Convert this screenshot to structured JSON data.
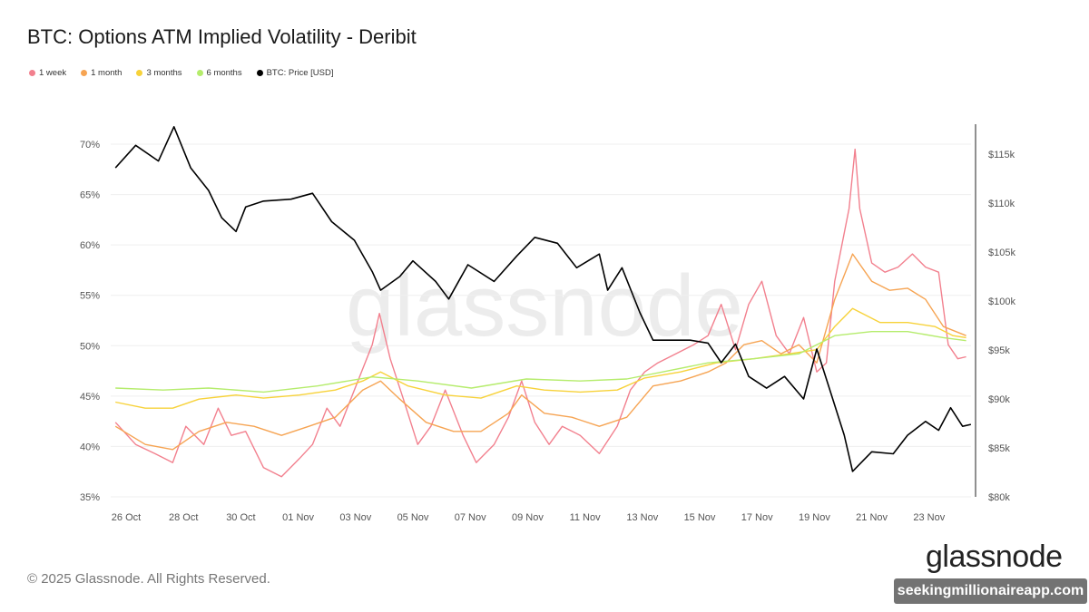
{
  "title": "BTC: Options ATM Implied Volatility - Deribit",
  "footer": "© 2025 Glassnode. All Rights Reserved.",
  "watermark": "glassnode",
  "logo": "glassnode",
  "overlay_watermark": "seekingmillionaireapp.com",
  "legend": [
    {
      "label": "1 week",
      "color": "#f2808e"
    },
    {
      "label": "1 month",
      "color": "#f6a453"
    },
    {
      "label": "3 months",
      "color": "#f7d23a"
    },
    {
      "label": "6 months",
      "color": "#b5ec6c"
    },
    {
      "label": "BTC: Price [USD]",
      "color": "#000000"
    }
  ],
  "chart_data": {
    "type": "line",
    "title": "BTC: Options ATM Implied Volatility - Deribit",
    "x_ticks": [
      "26 Oct",
      "28 Oct",
      "30 Oct",
      "01 Nov",
      "03 Nov",
      "05 Nov",
      "07 Nov",
      "09 Nov",
      "11 Nov",
      "13 Nov",
      "15 Nov",
      "17 Nov",
      "19 Nov",
      "21 Nov",
      "23 Nov"
    ],
    "y_left_ticks": [
      "35%",
      "40%",
      "45%",
      "50%",
      "55%",
      "60%",
      "65%",
      "70%"
    ],
    "y_left_range": [
      35,
      70
    ],
    "y_right_ticks": [
      "$80k",
      "$85k",
      "$90k",
      "$95k",
      "$100k",
      "$105k",
      "$110k",
      "$115k"
    ],
    "y_right_range": [
      80,
      115
    ],
    "grid": "horizontal",
    "legend_position": "top-left",
    "series": [
      {
        "name": "1 week",
        "axis": "left",
        "color": "#f2808e",
        "points": [
          [
            "2025-10-25T15:00",
            42.4
          ],
          [
            "2025-10-26T08:00",
            40.2
          ],
          [
            "2025-10-27T00:00",
            39.3
          ],
          [
            "2025-10-27T15:00",
            38.4
          ],
          [
            "2025-10-28T02:00",
            42.0
          ],
          [
            "2025-10-28T17:00",
            40.2
          ],
          [
            "2025-10-29T05:00",
            43.8
          ],
          [
            "2025-10-29T16:00",
            41.1
          ],
          [
            "2025-10-30T04:00",
            41.5
          ],
          [
            "2025-10-30T19:00",
            37.9
          ],
          [
            "2025-10-31T10:00",
            37.0
          ],
          [
            "2025-11-01T01:00",
            38.8
          ],
          [
            "2025-11-01T12:00",
            40.2
          ],
          [
            "2025-11-02T00:00",
            43.8
          ],
          [
            "2025-11-02T11:00",
            42.0
          ],
          [
            "2025-11-03T02:00",
            46.5
          ],
          [
            "2025-11-03T14:00",
            50.1
          ],
          [
            "2025-11-03T20:00",
            53.2
          ],
          [
            "2025-11-04T05:00",
            48.7
          ],
          [
            "2025-11-04T16:00",
            44.7
          ],
          [
            "2025-11-05T04:00",
            40.2
          ],
          [
            "2025-11-05T15:00",
            42.0
          ],
          [
            "2025-11-06T03:00",
            45.6
          ],
          [
            "2025-11-06T18:00",
            41.1
          ],
          [
            "2025-11-07T05:00",
            38.4
          ],
          [
            "2025-11-07T20:00",
            40.2
          ],
          [
            "2025-11-08T08:00",
            42.9
          ],
          [
            "2025-11-08T19:00",
            46.5
          ],
          [
            "2025-11-09T06:00",
            42.4
          ],
          [
            "2025-11-09T18:00",
            40.2
          ],
          [
            "2025-11-10T05:00",
            42.0
          ],
          [
            "2025-11-10T20:00",
            41.1
          ],
          [
            "2025-11-11T12:00",
            39.3
          ],
          [
            "2025-11-12T03:00",
            42.0
          ],
          [
            "2025-11-12T14:00",
            45.6
          ],
          [
            "2025-11-13T02:00",
            47.4
          ],
          [
            "2025-11-13T13:00",
            48.3
          ],
          [
            "2025-11-14T04:00",
            49.2
          ],
          [
            "2025-11-14T19:00",
            50.1
          ],
          [
            "2025-11-15T07:00",
            51.0
          ],
          [
            "2025-11-15T18:00",
            54.1
          ],
          [
            "2025-11-16T06:00",
            49.6
          ],
          [
            "2025-11-16T17:00",
            54.1
          ],
          [
            "2025-11-17T04:00",
            56.4
          ],
          [
            "2025-11-17T16:00",
            51.0
          ],
          [
            "2025-11-18T03:00",
            49.2
          ],
          [
            "2025-11-18T15:00",
            52.8
          ],
          [
            "2025-11-19T02:00",
            47.4
          ],
          [
            "2025-11-19T10:00",
            48.3
          ],
          [
            "2025-11-19T17:00",
            56.4
          ],
          [
            "2025-11-20T05:00",
            63.6
          ],
          [
            "2025-11-20T10:00",
            69.5
          ],
          [
            "2025-11-20T14:00",
            63.6
          ],
          [
            "2025-11-21T00:00",
            58.2
          ],
          [
            "2025-11-21T11:00",
            57.3
          ],
          [
            "2025-11-21T22:00",
            57.8
          ],
          [
            "2025-11-22T10:00",
            59.1
          ],
          [
            "2025-11-22T21:00",
            57.8
          ],
          [
            "2025-11-23T08:00",
            57.3
          ],
          [
            "2025-11-23T16:00",
            50.1
          ],
          [
            "2025-11-24T00:00",
            48.7
          ],
          [
            "2025-11-24T07:00",
            48.9
          ]
        ]
      },
      {
        "name": "1 month",
        "axis": "left",
        "color": "#f6a453",
        "points": [
          [
            "2025-10-25T15:00",
            42.0
          ],
          [
            "2025-10-26T16:00",
            40.2
          ],
          [
            "2025-10-27T15:00",
            39.7
          ],
          [
            "2025-10-28T13:00",
            41.5
          ],
          [
            "2025-10-29T12:00",
            42.4
          ],
          [
            "2025-10-30T11:00",
            42.0
          ],
          [
            "2025-10-31T10:00",
            41.1
          ],
          [
            "2025-11-01T09:00",
            42.0
          ],
          [
            "2025-11-02T07:00",
            42.9
          ],
          [
            "2025-11-03T06:00",
            45.6
          ],
          [
            "2025-11-03T21:00",
            46.5
          ],
          [
            "2025-11-04T13:00",
            44.7
          ],
          [
            "2025-11-05T11:00",
            42.4
          ],
          [
            "2025-11-06T10:00",
            41.5
          ],
          [
            "2025-11-07T09:00",
            41.5
          ],
          [
            "2025-11-08T08:00",
            43.3
          ],
          [
            "2025-11-08T19:00",
            45.1
          ],
          [
            "2025-11-09T14:00",
            43.3
          ],
          [
            "2025-11-10T13:00",
            42.9
          ],
          [
            "2025-11-11T12:00",
            42.0
          ],
          [
            "2025-11-12T11:00",
            42.9
          ],
          [
            "2025-11-13T09:00",
            46.0
          ],
          [
            "2025-11-14T08:00",
            46.5
          ],
          [
            "2025-11-15T07:00",
            47.4
          ],
          [
            "2025-11-15T22:00",
            48.3
          ],
          [
            "2025-11-16T13:00",
            50.1
          ],
          [
            "2025-11-17T04:00",
            50.5
          ],
          [
            "2025-11-17T20:00",
            49.2
          ],
          [
            "2025-11-18T11:00",
            50.1
          ],
          [
            "2025-11-19T02:00",
            48.3
          ],
          [
            "2025-11-19T17:00",
            54.6
          ],
          [
            "2025-11-20T08:00",
            59.1
          ],
          [
            "2025-11-21T00:00",
            56.4
          ],
          [
            "2025-11-21T15:00",
            55.5
          ],
          [
            "2025-11-22T06:00",
            55.7
          ],
          [
            "2025-11-22T21:00",
            54.6
          ],
          [
            "2025-11-23T12:00",
            51.9
          ],
          [
            "2025-11-24T07:00",
            51.0
          ]
        ]
      },
      {
        "name": "3 months",
        "axis": "left",
        "color": "#f7d23a",
        "points": [
          [
            "2025-10-25T15:00",
            44.4
          ],
          [
            "2025-10-26T16:00",
            43.8
          ],
          [
            "2025-10-27T15:00",
            43.8
          ],
          [
            "2025-10-28T13:00",
            44.7
          ],
          [
            "2025-10-29T20:00",
            45.1
          ],
          [
            "2025-10-30T19:00",
            44.8
          ],
          [
            "2025-11-01T01:00",
            45.1
          ],
          [
            "2025-11-02T07:00",
            45.6
          ],
          [
            "2025-11-03T06:00",
            46.5
          ],
          [
            "2025-11-03T21:00",
            47.4
          ],
          [
            "2025-11-04T20:00",
            46.0
          ],
          [
            "2025-11-06T03:00",
            45.1
          ],
          [
            "2025-11-07T09:00",
            44.8
          ],
          [
            "2025-11-08T15:00",
            46.0
          ],
          [
            "2025-11-09T14:00",
            45.6
          ],
          [
            "2025-11-10T20:00",
            45.4
          ],
          [
            "2025-11-12T03:00",
            45.6
          ],
          [
            "2025-11-13T02:00",
            46.8
          ],
          [
            "2025-11-14T08:00",
            47.4
          ],
          [
            "2025-11-15T14:00",
            48.3
          ],
          [
            "2025-11-16T21:00",
            48.7
          ],
          [
            "2025-11-18T03:00",
            49.2
          ],
          [
            "2025-11-19T02:00",
            49.6
          ],
          [
            "2025-11-19T17:00",
            51.9
          ],
          [
            "2025-11-20T08:00",
            53.7
          ],
          [
            "2025-11-21T07:00",
            52.3
          ],
          [
            "2025-11-22T06:00",
            52.3
          ],
          [
            "2025-11-23T05:00",
            51.9
          ],
          [
            "2025-11-23T20:00",
            51.0
          ],
          [
            "2025-11-24T07:00",
            50.8
          ]
        ]
      },
      {
        "name": "6 months",
        "axis": "left",
        "color": "#b5ec6c",
        "points": [
          [
            "2025-10-25T15:00",
            45.8
          ],
          [
            "2025-10-27T07:00",
            45.6
          ],
          [
            "2025-10-28T21:00",
            45.8
          ],
          [
            "2025-10-30T19:00",
            45.4
          ],
          [
            "2025-11-01T16:00",
            46.0
          ],
          [
            "2025-11-03T14:00",
            46.9
          ],
          [
            "2025-11-05T04:00",
            46.5
          ],
          [
            "2025-11-07T01:00",
            45.8
          ],
          [
            "2025-11-08T23:00",
            46.7
          ],
          [
            "2025-11-10T20:00",
            46.5
          ],
          [
            "2025-11-12T11:00",
            46.7
          ],
          [
            "2025-11-13T17:00",
            47.4
          ],
          [
            "2025-11-15T07:00",
            48.3
          ],
          [
            "2025-11-16T21:00",
            48.7
          ],
          [
            "2025-11-18T11:00",
            49.2
          ],
          [
            "2025-11-19T17:00",
            51.0
          ],
          [
            "2025-11-21T00:00",
            51.4
          ],
          [
            "2025-11-22T06:00",
            51.4
          ],
          [
            "2025-11-23T12:00",
            50.8
          ],
          [
            "2025-11-24T07:00",
            50.5
          ]
        ]
      },
      {
        "name": "BTC: Price [USD]",
        "axis": "right",
        "color": "#000000",
        "points": [
          [
            "2025-10-25T15:00",
            113.6
          ],
          [
            "2025-10-26T08:00",
            115.9
          ],
          [
            "2025-10-27T03:00",
            114.3
          ],
          [
            "2025-10-27T16:00",
            117.8
          ],
          [
            "2025-10-28T06:00",
            113.6
          ],
          [
            "2025-10-28T21:00",
            111.3
          ],
          [
            "2025-10-29T08:00",
            108.5
          ],
          [
            "2025-10-29T20:00",
            107.1
          ],
          [
            "2025-10-30T04:00",
            109.6
          ],
          [
            "2025-10-30T19:00",
            110.2
          ],
          [
            "2025-10-31T18:00",
            110.4
          ],
          [
            "2025-11-01T12:00",
            111.0
          ],
          [
            "2025-11-02T04:00",
            108.1
          ],
          [
            "2025-11-02T23:00",
            106.2
          ],
          [
            "2025-11-03T14:00",
            103.0
          ],
          [
            "2025-11-03T21:00",
            101.1
          ],
          [
            "2025-11-04T13:00",
            102.5
          ],
          [
            "2025-11-05T00:00",
            104.1
          ],
          [
            "2025-11-05T19:00",
            102.0
          ],
          [
            "2025-11-06T06:00",
            100.2
          ],
          [
            "2025-11-06T22:00",
            103.7
          ],
          [
            "2025-11-07T20:00",
            102.0
          ],
          [
            "2025-11-08T15:00",
            104.6
          ],
          [
            "2025-11-09T06:00",
            106.5
          ],
          [
            "2025-11-10T01:00",
            105.9
          ],
          [
            "2025-11-10T17:00",
            103.4
          ],
          [
            "2025-11-11T12:00",
            104.8
          ],
          [
            "2025-11-11T19:00",
            101.1
          ],
          [
            "2025-11-12T07:00",
            103.4
          ],
          [
            "2025-11-12T22:00",
            98.8
          ],
          [
            "2025-11-13T09:00",
            96.0
          ],
          [
            "2025-11-14T00:00",
            96.0
          ],
          [
            "2025-11-14T16:00",
            96.0
          ],
          [
            "2025-11-15T07:00",
            95.7
          ],
          [
            "2025-11-15T18:00",
            93.7
          ],
          [
            "2025-11-16T06:00",
            95.6
          ],
          [
            "2025-11-16T17:00",
            92.3
          ],
          [
            "2025-11-17T08:00",
            91.1
          ],
          [
            "2025-11-17T23:00",
            92.3
          ],
          [
            "2025-11-18T15:00",
            90.0
          ],
          [
            "2025-11-19T02:00",
            95.1
          ],
          [
            "2025-11-19T13:00",
            90.9
          ],
          [
            "2025-11-20T01:00",
            86.3
          ],
          [
            "2025-11-20T08:00",
            82.6
          ],
          [
            "2025-11-21T00:00",
            84.6
          ],
          [
            "2025-11-21T18:00",
            84.4
          ],
          [
            "2025-11-22T06:00",
            86.3
          ],
          [
            "2025-11-22T21:00",
            87.7
          ],
          [
            "2025-11-23T08:00",
            86.8
          ],
          [
            "2025-11-23T18:00",
            89.1
          ],
          [
            "2025-11-24T04:00",
            87.2
          ],
          [
            "2025-11-24T11:00",
            87.4
          ]
        ]
      }
    ]
  }
}
